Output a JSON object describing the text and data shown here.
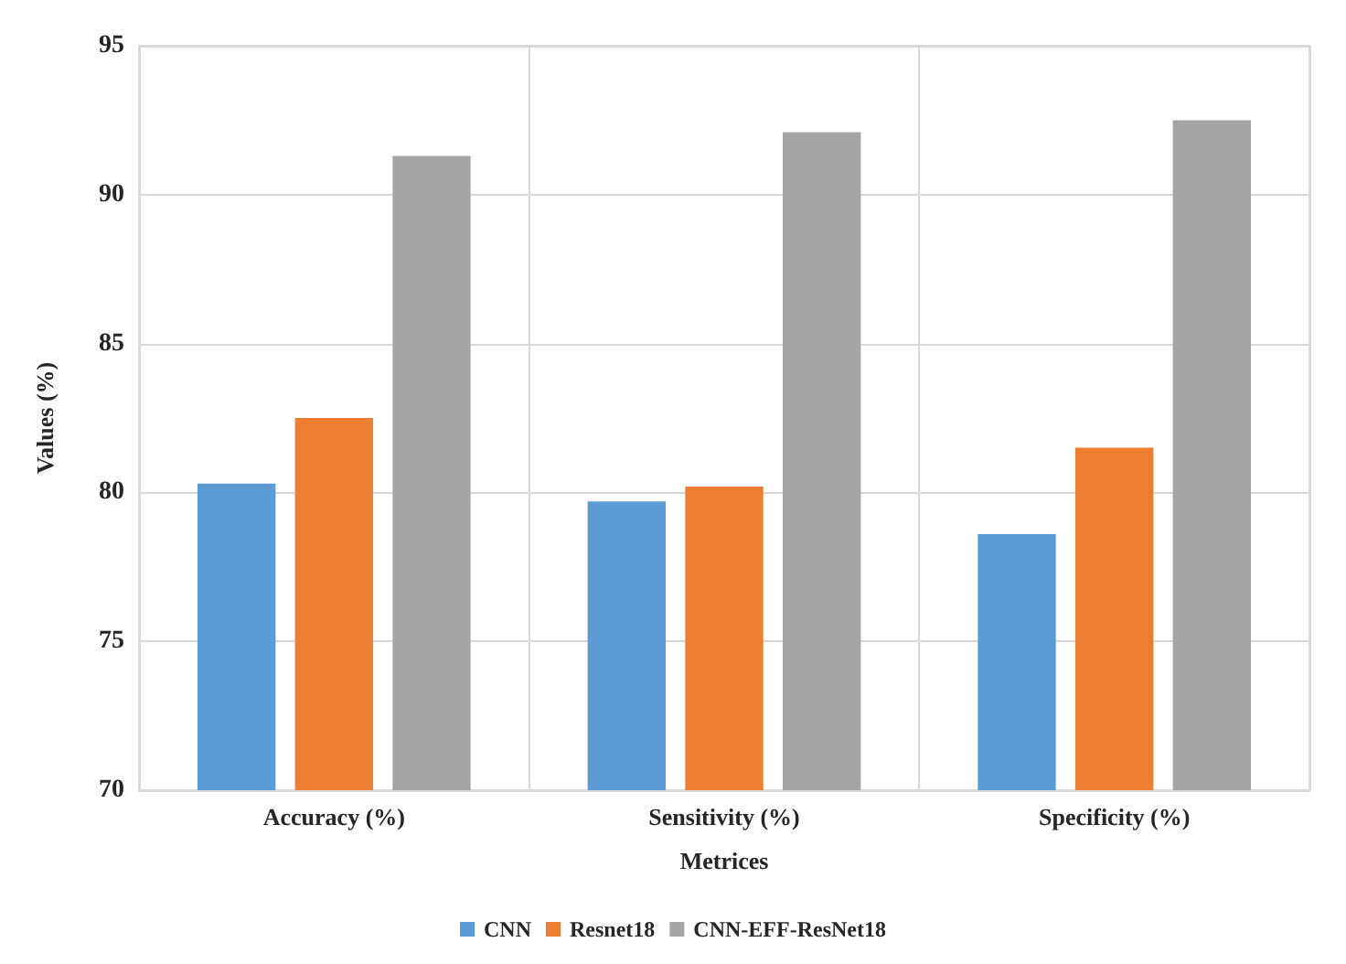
{
  "chart_data": {
    "type": "bar",
    "xlabel": "Metrices",
    "ylabel": "Values (%)",
    "categories": [
      "Accuracy (%)",
      "Sensitivity (%)",
      "Specificity (%)"
    ],
    "series": [
      {
        "name": "CNN",
        "color": "#5b9bd5",
        "values": [
          80.3,
          79.7,
          78.6
        ]
      },
      {
        "name": "Resnet18",
        "color": "#ed7d31",
        "values": [
          82.5,
          80.2,
          81.5
        ]
      },
      {
        "name": "CNN-EFF-ResNet18",
        "color": "#a5a5a5",
        "values": [
          91.3,
          92.1,
          92.5
        ]
      }
    ],
    "ylim": [
      70,
      95
    ],
    "yticks": [
      70,
      75,
      80,
      85,
      90,
      95
    ],
    "grid": true,
    "legend": "bottom"
  }
}
